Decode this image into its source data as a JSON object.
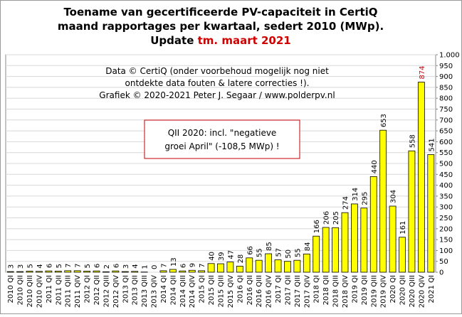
{
  "chart_data": {
    "type": "bar",
    "title": [
      "Toename van gecertificeerde PV-capaciteit  in CertiQ",
      "maand rapportages per kwartaal, sedert 2010 (MWp)."
    ],
    "update_prefix": "Update",
    "update_date": "tm. maart 2021",
    "annotations": [
      "Data © CertiQ (onder voorbehoud mogelijk  nog niet",
      "ontdekte data fouten & latere correcties !).",
      "Grafiek  © 2020-2021 Peter J. Segaar / www.polderpv.nl"
    ],
    "note_box": [
      "QII 2020: incl. \"negatieve",
      "groei April\"  (-108,5 MWp) !"
    ],
    "categories": [
      "2010 QI",
      "2010 QII",
      "2010 QIII",
      "2010 QIV",
      "2011 QI",
      "2011 QII",
      "2011 QIII",
      "2011 QIV",
      "2012 QI",
      "2012 QII",
      "2012 QIII",
      "2012 QIV",
      "2013 QI",
      "2013 QII",
      "2013 QIII",
      "2013 QIV",
      "2014 QI",
      "2014 QII",
      "2014 QIII",
      "2014 QIV",
      "2015 QI",
      "2015 QII",
      "2015 QIII",
      "2015 QIV",
      "2016 QI",
      "2016 QII",
      "2016 QIII",
      "2016 QIV",
      "2017 QI",
      "2017 QII",
      "2017 QIII",
      "2017 QIV",
      "2018 QI",
      "2018 QII",
      "2018 QIII",
      "2018 QIV",
      "2019 QI",
      "2019 QII",
      "2019 QIII",
      "2019 QIV",
      "2020 QI",
      "2020 QII",
      "2020 QIII",
      "2020 QIV",
      "2021 QI"
    ],
    "values": [
      3,
      3,
      5,
      4,
      6,
      5,
      7,
      7,
      5,
      6,
      2,
      6,
      3,
      4,
      1,
      0,
      7,
      13,
      6,
      9,
      7,
      40,
      39,
      47,
      28,
      66,
      55,
      85,
      57,
      50,
      55,
      84,
      166,
      206,
      205,
      274,
      314,
      295,
      440,
      653,
      304,
      161,
      558,
      874,
      541
    ],
    "color": "#ffff00",
    "peak_label_color": "#d00000",
    "ylim": [
      0,
      1000
    ],
    "yticks": [
      0,
      50,
      100,
      150,
      200,
      250,
      300,
      350,
      400,
      450,
      500,
      550,
      600,
      650,
      700,
      750,
      800,
      850,
      900,
      950,
      {
        "value": 1000,
        "label": "1.000"
      }
    ],
    "grid": true
  }
}
